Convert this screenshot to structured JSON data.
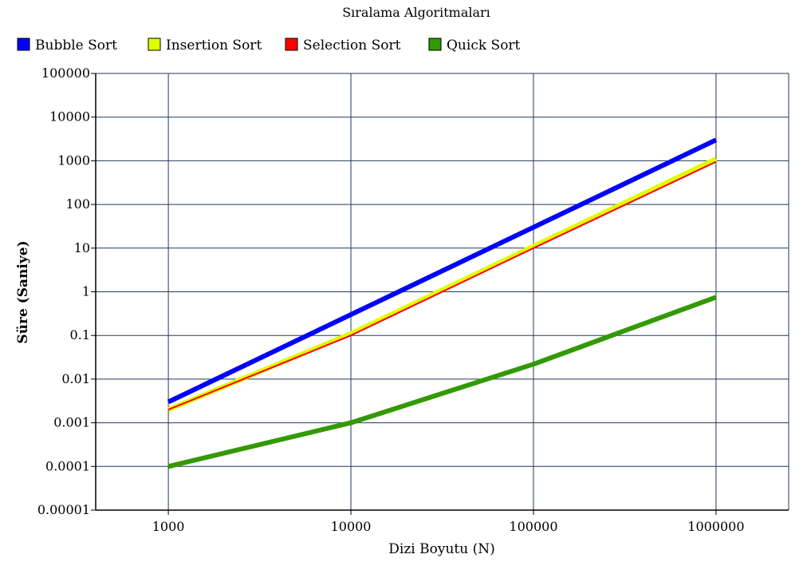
{
  "chart_data": {
    "type": "line",
    "title": "Sıralama Algoritmaları",
    "xlabel": "Dizi Boyutu (N)",
    "ylabel": "Süre (Saniye)",
    "x_scale": "log",
    "y_scale": "log",
    "x": [
      1000,
      10000,
      100000,
      1000000
    ],
    "x_tick_labels": [
      "1000",
      "10000",
      "100000",
      "1000000"
    ],
    "xlim": [
      400,
      2500000
    ],
    "ylim": [
      1e-05,
      100000
    ],
    "y_ticks": [
      1e-05,
      0.0001,
      0.001,
      0.01,
      0.1,
      1,
      10,
      100,
      1000,
      10000,
      100000
    ],
    "y_tick_labels": [
      "0.00001",
      "0.0001",
      "0.001",
      "0.01",
      "0.1",
      "1",
      "10",
      "100",
      "1000",
      "10000",
      "100000"
    ],
    "grid": true,
    "legend_position": "top",
    "series": [
      {
        "name": "Bubble Sort",
        "color": "#0000ff",
        "values": [
          0.003,
          0.3,
          30,
          3000
        ]
      },
      {
        "name": "Insertion Sort",
        "color": "#dfff00",
        "values": [
          0.002,
          0.11,
          11,
          1100
        ]
      },
      {
        "name": "Selection Sort",
        "color": "#ff0000",
        "values": [
          0.002,
          0.1,
          10,
          950
        ]
      },
      {
        "name": "Quick Sort",
        "color": "#339900",
        "values": [
          0.0001,
          0.001,
          0.022,
          0.75
        ]
      }
    ]
  }
}
